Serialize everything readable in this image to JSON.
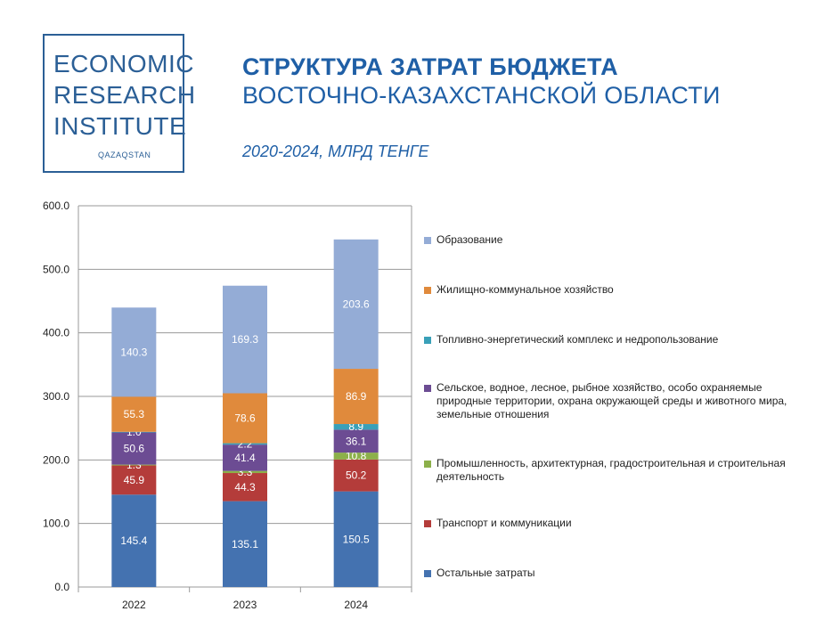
{
  "logo": {
    "lines": [
      "ECONOMIC",
      "RESEARCH",
      "INSTITUTE"
    ],
    "sub": "QAZAQSTAN"
  },
  "title": {
    "line1": "СТРУКТУРА ЗАТРАТ БЮДЖЕТА",
    "line2": "ВОСТОЧНО-КАЗАХСТАНСКОЙ ОБЛАСТИ",
    "subtitle": "2020-2024, МЛРД ТЕНГЕ"
  },
  "chart_data": {
    "type": "bar",
    "stacked": true,
    "categories": [
      "2022",
      "2023",
      "2024"
    ],
    "ylim": [
      0,
      600
    ],
    "yticks": [
      "0.0",
      "100.0",
      "200.0",
      "300.0",
      "400.0",
      "500.0",
      "600.0"
    ],
    "grid": true,
    "legend_position": "right",
    "series": [
      {
        "name": "Остальные затраты",
        "color": "#4472b0",
        "values": [
          145.4,
          135.1,
          150.5
        ],
        "labels": [
          "145.4",
          "135.1",
          "150.5"
        ]
      },
      {
        "name": "Транспорт и коммуникации",
        "color": "#b43c3a",
        "values": [
          45.9,
          44.3,
          50.2
        ],
        "labels": [
          "45.9",
          "44.3",
          "50.2"
        ]
      },
      {
        "name": "Промышленность, архитектурная, градостроительная и строительная деятельность",
        "color": "#8cb04a",
        "values": [
          1.3,
          3.3,
          10.8
        ],
        "labels": [
          "1.3",
          "3.3",
          "10.8"
        ]
      },
      {
        "name": "Сельское, водное, лесное, рыбное хозяйство, особо охраняемые природные территории, охрана окружающей среды и животного мира, земельные отношения",
        "color": "#6c4c93",
        "values": [
          50.6,
          41.4,
          36.1
        ],
        "labels": [
          "50.6",
          "41.4",
          "36.1"
        ]
      },
      {
        "name": "Топливно-энергетический комплекс и недропользование",
        "color": "#39a0b8",
        "values": [
          1.0,
          2.2,
          8.9
        ],
        "labels": [
          "1.0",
          "2.2",
          "8.9"
        ]
      },
      {
        "name": "Жилищно-коммунальное хозяйство",
        "color": "#e08a3c",
        "values": [
          55.3,
          78.6,
          86.9
        ],
        "labels": [
          "55.3",
          "78.6",
          "86.9"
        ]
      },
      {
        "name": "Образование",
        "color": "#94acd6",
        "values": [
          140.3,
          169.3,
          203.6
        ],
        "labels": [
          "140.3",
          "169.3",
          "203.6"
        ]
      }
    ]
  }
}
